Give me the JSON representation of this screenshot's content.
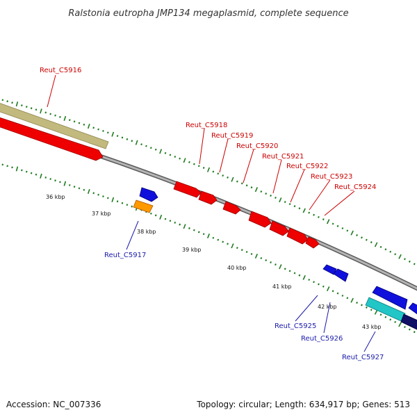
{
  "title": "Ralstonia eutropha JMP134 megaplasmid, complete sequence",
  "footer": {
    "accession": "Accession: NC_007336",
    "topology": "Topology: circular; Length: 634,917 bp; Genes: 513"
  },
  "scale_labels": [
    "36 kbp",
    "37 kbp",
    "38 kbp",
    "39 kbp",
    "40 kbp",
    "41 kbp",
    "42 kbp",
    "43 kbp"
  ],
  "gene_labels": {
    "forward": [
      "Reut_C5916",
      "Reut_C5918",
      "Reut_C5919",
      "Reut_C5920",
      "Reut_C5921",
      "Reut_C5922",
      "Reut_C5923",
      "Reut_C5924"
    ],
    "reverse": [
      "Reut_C5917",
      "Reut_C5925",
      "Reut_C5926",
      "Reut_C5927"
    ]
  },
  "colors": {
    "forward_label": "#cc0000",
    "reverse_label": "#1a1aaa",
    "forward_gene": "#ee0000",
    "reverse_gene": "#1010dd",
    "khaki_feature": "#c2b97e",
    "orange_gene": "#ff9900",
    "cyan_feature": "#22c6c6",
    "navy_gene": "#101066",
    "backbone": "#8a8a8a",
    "tick": "#1e7a1e"
  }
}
